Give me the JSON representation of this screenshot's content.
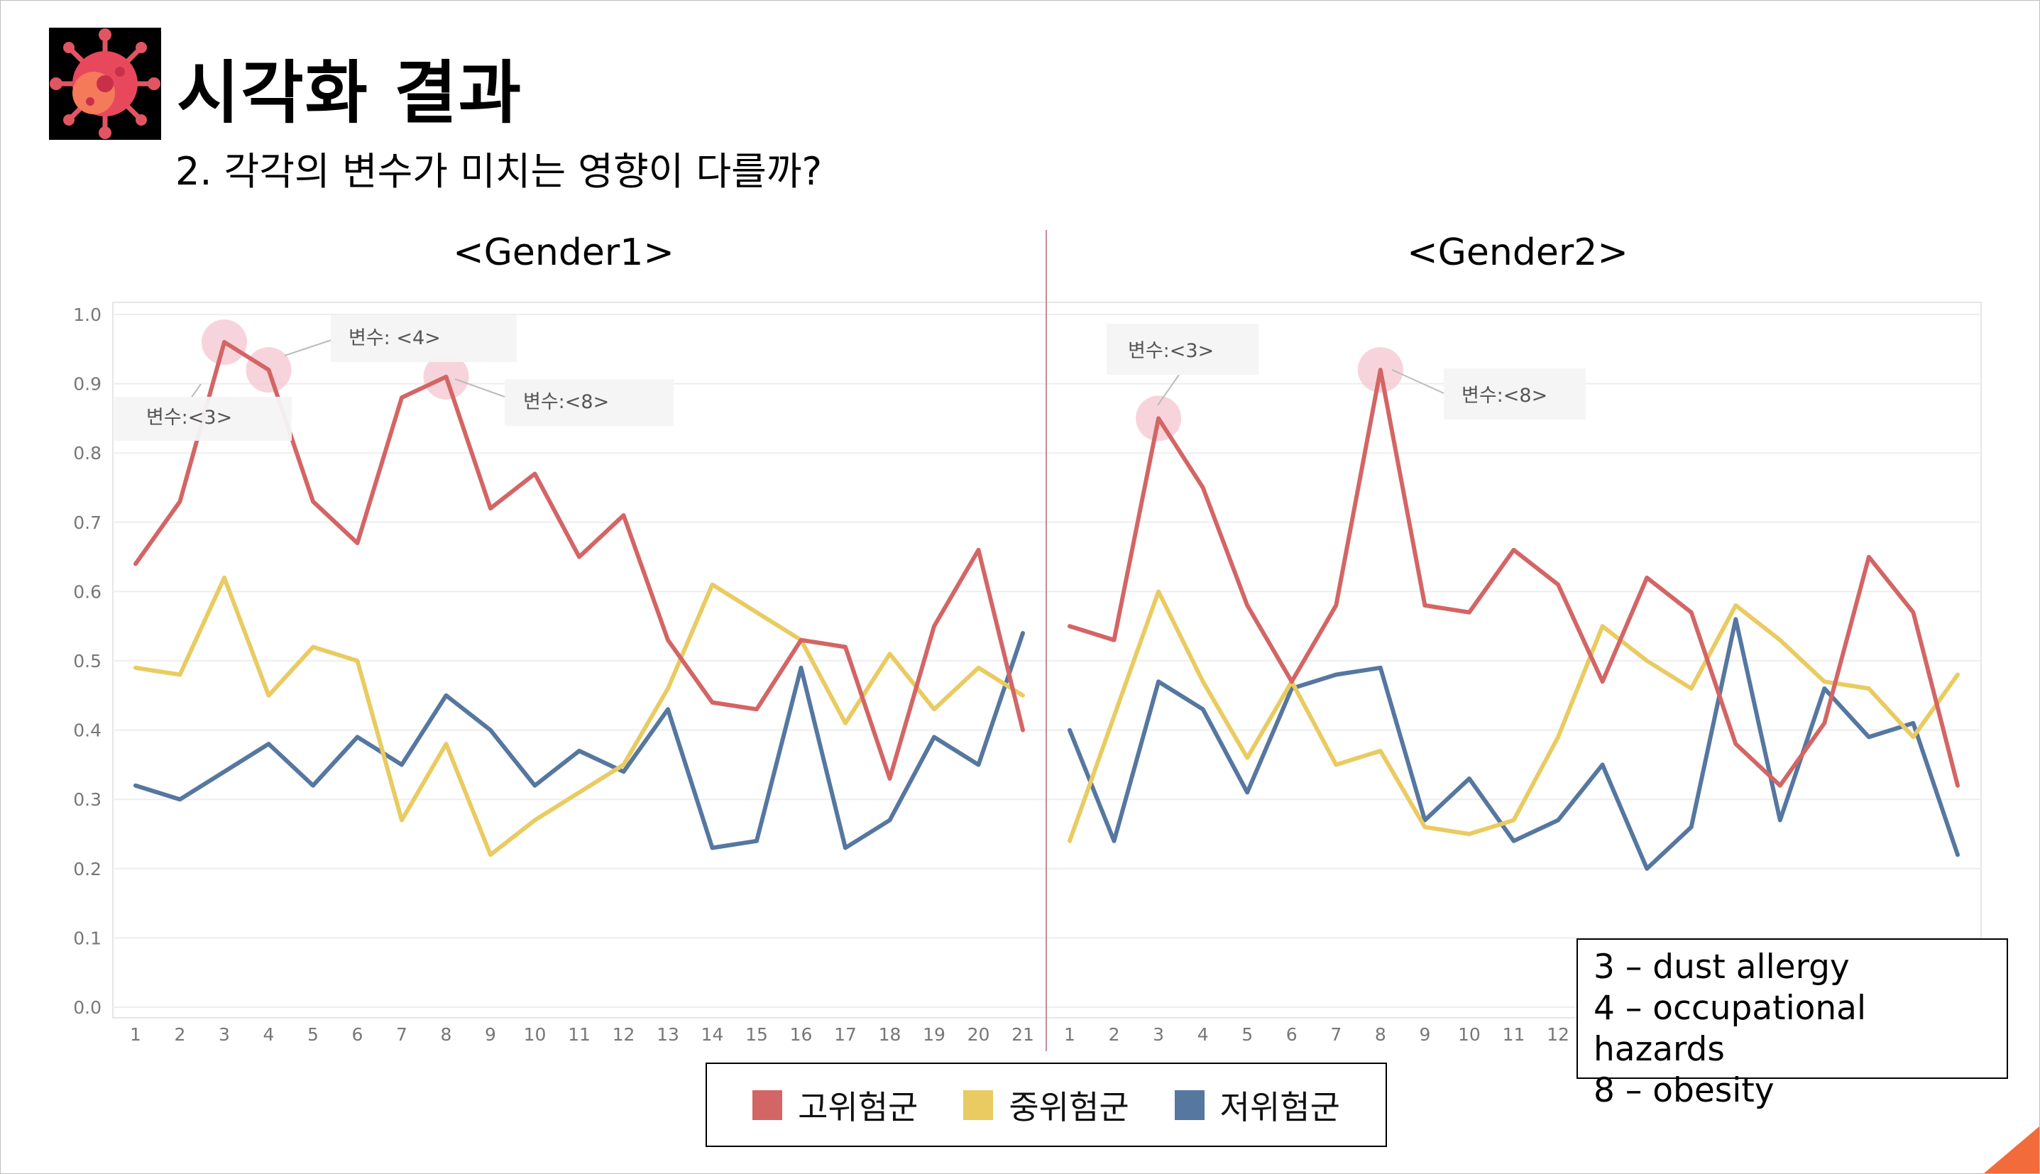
{
  "slide": {
    "title": "시각화 결과",
    "subtitle": "2. 각각의 변수가 미치는 영향이 다를까?",
    "logo_icon": "virus-icon"
  },
  "notes": {
    "lines": [
      "3 – dust allergy",
      "4 – occupational hazards",
      "8 – obesity"
    ]
  },
  "colors": {
    "high": "#d46565",
    "mid": "#e9cb61",
    "low": "#5577a0",
    "grid": "#eeeeee",
    "divider": "#c98a98"
  },
  "chart_data": [
    {
      "type": "line",
      "title": "<Gender1>",
      "x": [
        "1",
        "2",
        "3",
        "4",
        "5",
        "6",
        "7",
        "8",
        "9",
        "10",
        "11",
        "12",
        "13",
        "14",
        "15",
        "16",
        "17",
        "18",
        "19",
        "20",
        "21"
      ],
      "ylim": [
        0,
        1.0
      ],
      "yticks": [
        "0.0",
        "0.1",
        "0.2",
        "0.3",
        "0.4",
        "0.5",
        "0.6",
        "0.7",
        "0.8",
        "0.9",
        "1.0"
      ],
      "grid": true,
      "series": [
        {
          "name": "고위험군",
          "color": "#d46565",
          "values": [
            0.64,
            0.73,
            0.96,
            0.92,
            0.73,
            0.67,
            0.88,
            0.91,
            0.72,
            0.77,
            0.65,
            0.71,
            0.53,
            0.44,
            0.43,
            0.53,
            0.52,
            0.33,
            0.55,
            0.66,
            0.4
          ]
        },
        {
          "name": "중위험군",
          "color": "#e9cb61",
          "values": [
            0.49,
            0.48,
            0.62,
            0.45,
            0.52,
            0.5,
            0.27,
            0.38,
            0.22,
            0.27,
            0.31,
            0.35,
            0.46,
            0.61,
            0.57,
            0.53,
            0.41,
            0.51,
            0.43,
            0.49,
            0.45
          ]
        },
        {
          "name": "저위험군",
          "color": "#5577a0",
          "values": [
            0.32,
            0.3,
            0.34,
            0.38,
            0.32,
            0.39,
            0.35,
            0.45,
            0.4,
            0.32,
            0.37,
            0.34,
            0.43,
            0.23,
            0.24,
            0.49,
            0.23,
            0.27,
            0.39,
            0.35,
            0.54
          ]
        }
      ],
      "annotations": [
        {
          "text": "변수:<3>",
          "x": "3"
        },
        {
          "text": "변수: <4>",
          "x": "4"
        },
        {
          "text": "변수:<8>",
          "x": "8"
        }
      ]
    },
    {
      "type": "line",
      "title": "<Gender2>",
      "x": [
        "1",
        "2",
        "3",
        "4",
        "5",
        "6",
        "7",
        "8",
        "9",
        "10",
        "11",
        "12",
        "13",
        "14",
        "15",
        "16",
        "17",
        "18",
        "19",
        "20",
        "21"
      ],
      "ylim": [
        0,
        1.0
      ],
      "grid": true,
      "series": [
        {
          "name": "고위험군",
          "color": "#d46565",
          "values": [
            0.55,
            0.53,
            0.85,
            0.75,
            0.58,
            0.47,
            0.58,
            0.92,
            0.58,
            0.57,
            0.66,
            0.61,
            0.47,
            0.62,
            0.57,
            0.38,
            0.32,
            0.41,
            0.65,
            0.57,
            0.32
          ]
        },
        {
          "name": "중위험군",
          "color": "#e9cb61",
          "values": [
            0.24,
            0.42,
            0.6,
            0.47,
            0.36,
            0.47,
            0.35,
            0.37,
            0.26,
            0.25,
            0.27,
            0.39,
            0.55,
            0.5,
            0.46,
            0.58,
            0.53,
            0.47,
            0.46,
            0.39,
            0.48
          ]
        },
        {
          "name": "저위험군",
          "color": "#5577a0",
          "values": [
            0.4,
            0.24,
            0.47,
            0.43,
            0.31,
            0.46,
            0.48,
            0.49,
            0.27,
            0.33,
            0.24,
            0.27,
            0.35,
            0.2,
            0.26,
            0.56,
            0.27,
            0.46,
            0.39,
            0.41,
            0.22
          ]
        }
      ],
      "annotations": [
        {
          "text": "변수:<3>",
          "x": "3"
        },
        {
          "text": "변수:<8>",
          "x": "8"
        }
      ]
    }
  ],
  "legend": {
    "items": [
      {
        "label": "고위험군",
        "color": "#d46565"
      },
      {
        "label": "중위험군",
        "color": "#e9cb61"
      },
      {
        "label": "저위험군",
        "color": "#5577a0"
      }
    ]
  }
}
